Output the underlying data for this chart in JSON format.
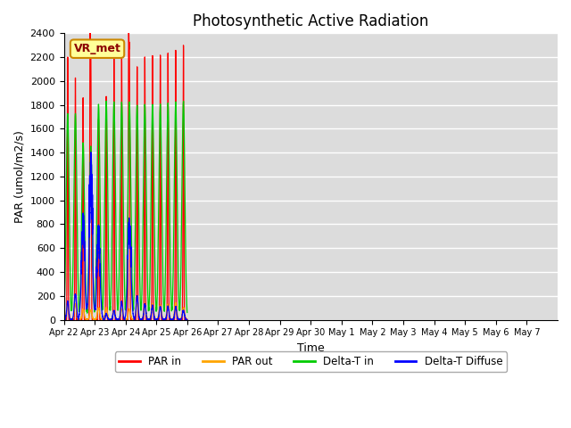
{
  "title": "Photosynthetic Active Radiation",
  "xlabel": "Time",
  "ylabel": "PAR (umol/m2/s)",
  "ylim": [
    0,
    2400
  ],
  "yticks": [
    0,
    200,
    400,
    600,
    800,
    1000,
    1200,
    1400,
    1600,
    1800,
    2000,
    2200,
    2400
  ],
  "legend_labels": [
    "PAR in",
    "PAR out",
    "Delta-T in",
    "Delta-T Diffuse"
  ],
  "legend_colors": [
    "#ff0000",
    "#ffa500",
    "#00cc00",
    "#0000ff"
  ],
  "annotation_text": "VR_met",
  "background_color": "#dcdcdc",
  "grid_color": "#ffffff",
  "fig_color": "#ffffff",
  "title_fontsize": 12,
  "n_days": 16,
  "hours_per_day": 24,
  "dt_hours": 0.25,
  "par_in_peaks": [
    2200,
    2030,
    1860,
    2175,
    1680,
    1870,
    2200,
    2200,
    2200,
    2120,
    2200,
    2210,
    2220,
    2230,
    2260,
    2300
  ],
  "par_in_peaks2": [
    0,
    0,
    0,
    2180,
    0,
    0,
    0,
    0,
    2200,
    0,
    0,
    0,
    0,
    0,
    0,
    0
  ],
  "par_out_peaks": [
    130,
    130,
    90,
    80,
    100,
    100,
    75,
    90,
    90,
    130,
    130,
    130,
    120,
    130,
    140,
    100
  ],
  "delta_t_peaks": [
    1730,
    1730,
    1480,
    1450,
    1800,
    1830,
    1820,
    1820,
    1820,
    1800,
    1800,
    1800,
    1800,
    1810,
    1820,
    1830
  ],
  "delta_t_diffuse_peaks": [
    150,
    210,
    700,
    960,
    580,
    50,
    75,
    150,
    680,
    200,
    130,
    120,
    110,
    115,
    110,
    80
  ],
  "xticklabels": [
    "Apr 22",
    "Apr 23",
    "Apr 24",
    "Apr 25",
    "Apr 26",
    "Apr 27",
    "Apr 28",
    "Apr 29",
    "Apr 30",
    "May 1",
    "May 2",
    "May 3",
    "May 4",
    "May 5",
    "May 6",
    "May 7"
  ]
}
